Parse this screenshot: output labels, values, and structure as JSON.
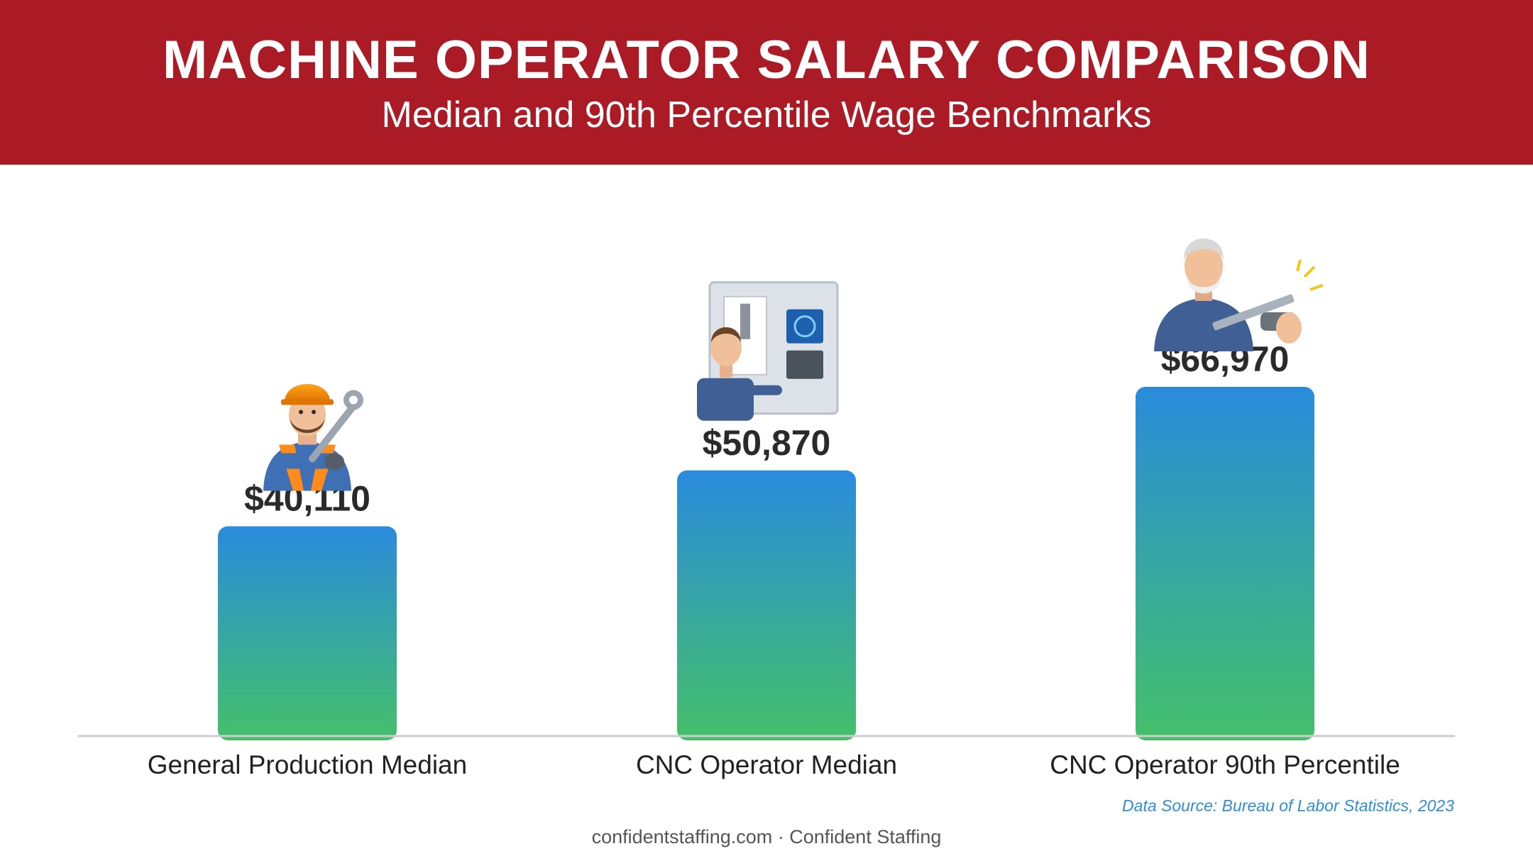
{
  "header": {
    "title": "MACHINE OPERATOR SALARY COMPARISON",
    "subtitle": "Median and 90th Percentile Wage Benchmarks"
  },
  "chart_data": {
    "type": "bar",
    "title": "MACHINE OPERATOR SALARY COMPARISON",
    "subtitle": "Median and 90th Percentile Wage Benchmarks",
    "categories": [
      "General Production Median",
      "CNC Operator Median",
      "CNC Operator 90th Percentile"
    ],
    "values": [
      40110,
      50870,
      66970
    ],
    "value_labels": [
      "$40,110",
      "$50,870",
      "$66,970"
    ],
    "xlabel": "",
    "ylabel": "",
    "ylim": [
      0,
      100000
    ],
    "grid": false,
    "legend": "none",
    "bar_gradient": [
      "#2a8bdc",
      "#45c06a"
    ]
  },
  "icons": [
    "construction-worker-icon",
    "cnc-operator-icon",
    "senior-machinist-icon"
  ],
  "source_note": "Data Source: Bureau of Labor Statistics, 2023",
  "footer": "confidentstaffing.com · Confident Staffing",
  "colors": {
    "header_bg": "#aa1b26",
    "axis": "#cccccc",
    "source_text": "#2e8fd1"
  }
}
